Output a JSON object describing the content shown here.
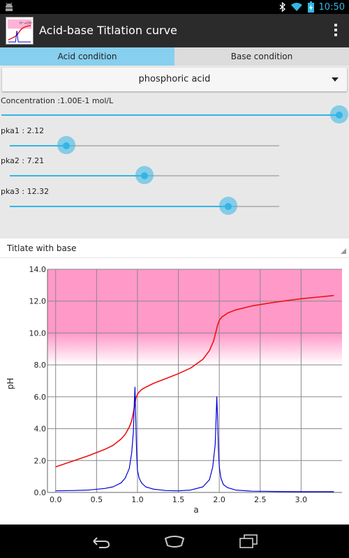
{
  "status": {
    "time": "10:50"
  },
  "app": {
    "title": "Acid-base Titlation curve"
  },
  "tabs": [
    {
      "label": "Acid condition",
      "active": true
    },
    {
      "label": "Base condition",
      "active": false
    }
  ],
  "acid": {
    "selected": "phosphoric acid"
  },
  "sliders": [
    {
      "label": "Concentration :1.00E-1 mol/L",
      "value": 1.0
    },
    {
      "label": "pka1 : 2.12",
      "value": 0.21
    },
    {
      "label": "pka2 : 7.21",
      "value": 0.5
    },
    {
      "label": "pka3 : 12.32",
      "value": 0.81
    }
  ],
  "chart_header": "Titlate with base",
  "colors": {
    "accent": "#33b5e5",
    "ph_curve": "#ee1111",
    "derivative_curve": "#0000dd",
    "band": "#ff99c8"
  },
  "chart_data": {
    "type": "line",
    "xlabel": "a",
    "ylabel": "pH",
    "xlim": [
      -0.1,
      3.5
    ],
    "ylim": [
      0,
      14
    ],
    "xticks": [
      "0.0",
      "0.5",
      "1.0",
      "1.5",
      "2.0",
      "2.5",
      "3.0"
    ],
    "yticks": [
      "0.0",
      "2.0",
      "4.0",
      "6.0",
      "8.0",
      "10.0",
      "12.0",
      "14.0"
    ],
    "band": {
      "y_from": 8.0,
      "y_to": 14.0,
      "fade_from": 10.0
    },
    "grid": true,
    "series": [
      {
        "role": "pH",
        "x": [
          0.0,
          0.2,
          0.4,
          0.6,
          0.7,
          0.8,
          0.85,
          0.9,
          0.93,
          0.95,
          0.97,
          0.98,
          1.0,
          1.02,
          1.05,
          1.1,
          1.2,
          1.35,
          1.5,
          1.65,
          1.8,
          1.88,
          1.93,
          1.96,
          1.98,
          2.0,
          2.03,
          2.06,
          2.1,
          2.2,
          2.4,
          2.7,
          3.0,
          3.2,
          3.4
        ],
        "y": [
          1.6,
          1.95,
          2.3,
          2.7,
          2.95,
          3.35,
          3.65,
          4.1,
          4.5,
          5.0,
          5.6,
          5.9,
          6.15,
          6.3,
          6.45,
          6.6,
          6.85,
          7.15,
          7.45,
          7.8,
          8.35,
          8.9,
          9.5,
          10.1,
          10.5,
          10.8,
          11.0,
          11.1,
          11.25,
          11.45,
          11.7,
          11.95,
          12.15,
          12.25,
          12.35
        ]
      },
      {
        "role": "derivative",
        "x": [
          0.0,
          0.2,
          0.4,
          0.6,
          0.7,
          0.8,
          0.85,
          0.9,
          0.93,
          0.95,
          0.96,
          0.97,
          0.98,
          0.99,
          1.0,
          1.02,
          1.05,
          1.1,
          1.2,
          1.35,
          1.5,
          1.65,
          1.8,
          1.88,
          1.92,
          1.95,
          1.96,
          1.97,
          1.98,
          1.99,
          2.0,
          2.02,
          2.05,
          2.1,
          2.2,
          2.4,
          2.7,
          3.0,
          3.2,
          3.4
        ],
        "y": [
          0.1,
          0.12,
          0.15,
          0.25,
          0.35,
          0.6,
          0.9,
          1.5,
          2.5,
          3.8,
          5.5,
          6.6,
          4.5,
          2.4,
          1.4,
          0.9,
          0.6,
          0.35,
          0.2,
          0.12,
          0.1,
          0.15,
          0.35,
          0.8,
          1.6,
          3.0,
          4.5,
          6.0,
          4.6,
          2.6,
          1.6,
          0.9,
          0.5,
          0.3,
          0.15,
          0.08,
          0.06,
          0.05,
          0.05,
          0.05
        ]
      }
    ]
  }
}
